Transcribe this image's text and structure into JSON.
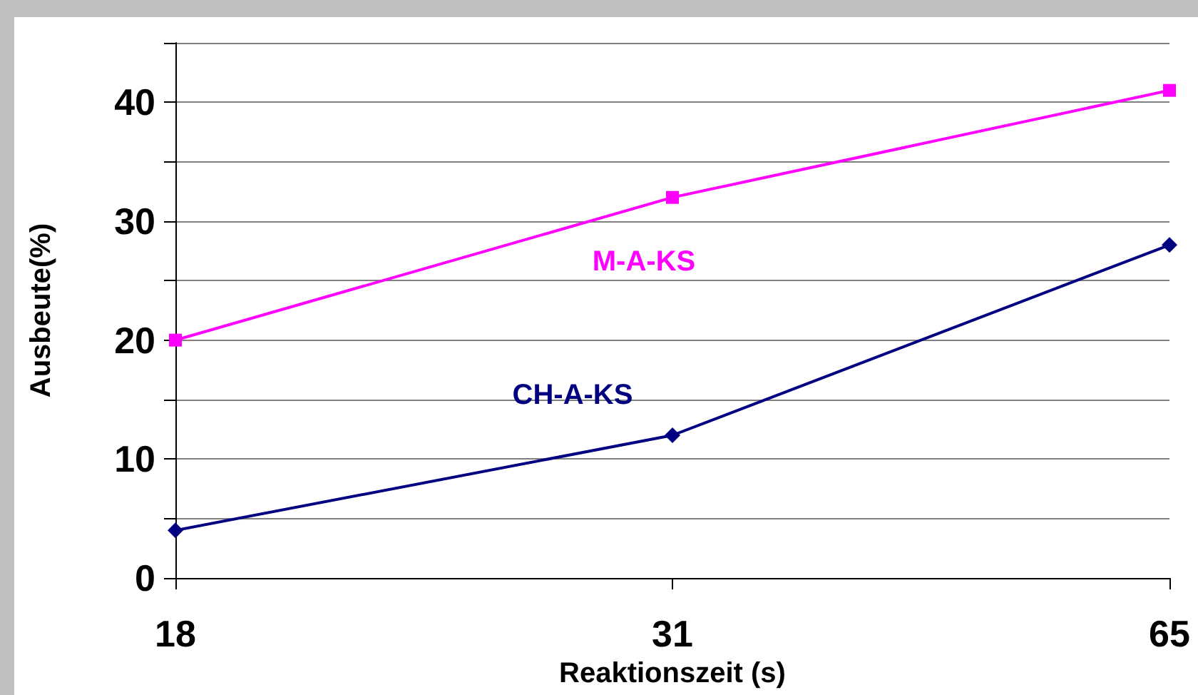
{
  "chart_data": {
    "type": "line",
    "xlabel": "Reaktionszeit (s)",
    "ylabel": "Ausbeute(%)",
    "categories": [
      "18",
      "31",
      "65"
    ],
    "series": [
      {
        "name": "M-A-KS",
        "color": "#ff00ff",
        "marker": "square",
        "values": [
          20,
          32,
          41
        ]
      },
      {
        "name": "CH-A-KS",
        "color": "#000080",
        "marker": "diamond",
        "values": [
          4,
          12,
          28
        ]
      }
    ],
    "ylim": [
      0,
      45
    ],
    "yticks": [
      0,
      {
        "value": 5,
        "label": null
      },
      10,
      {
        "value": 15,
        "label": null
      },
      20,
      {
        "value": 25,
        "label": null
      },
      30,
      {
        "value": 35,
        "label": null
      },
      40,
      {
        "value": 45,
        "label": null
      }
    ],
    "grid": "y",
    "legend": false
  }
}
